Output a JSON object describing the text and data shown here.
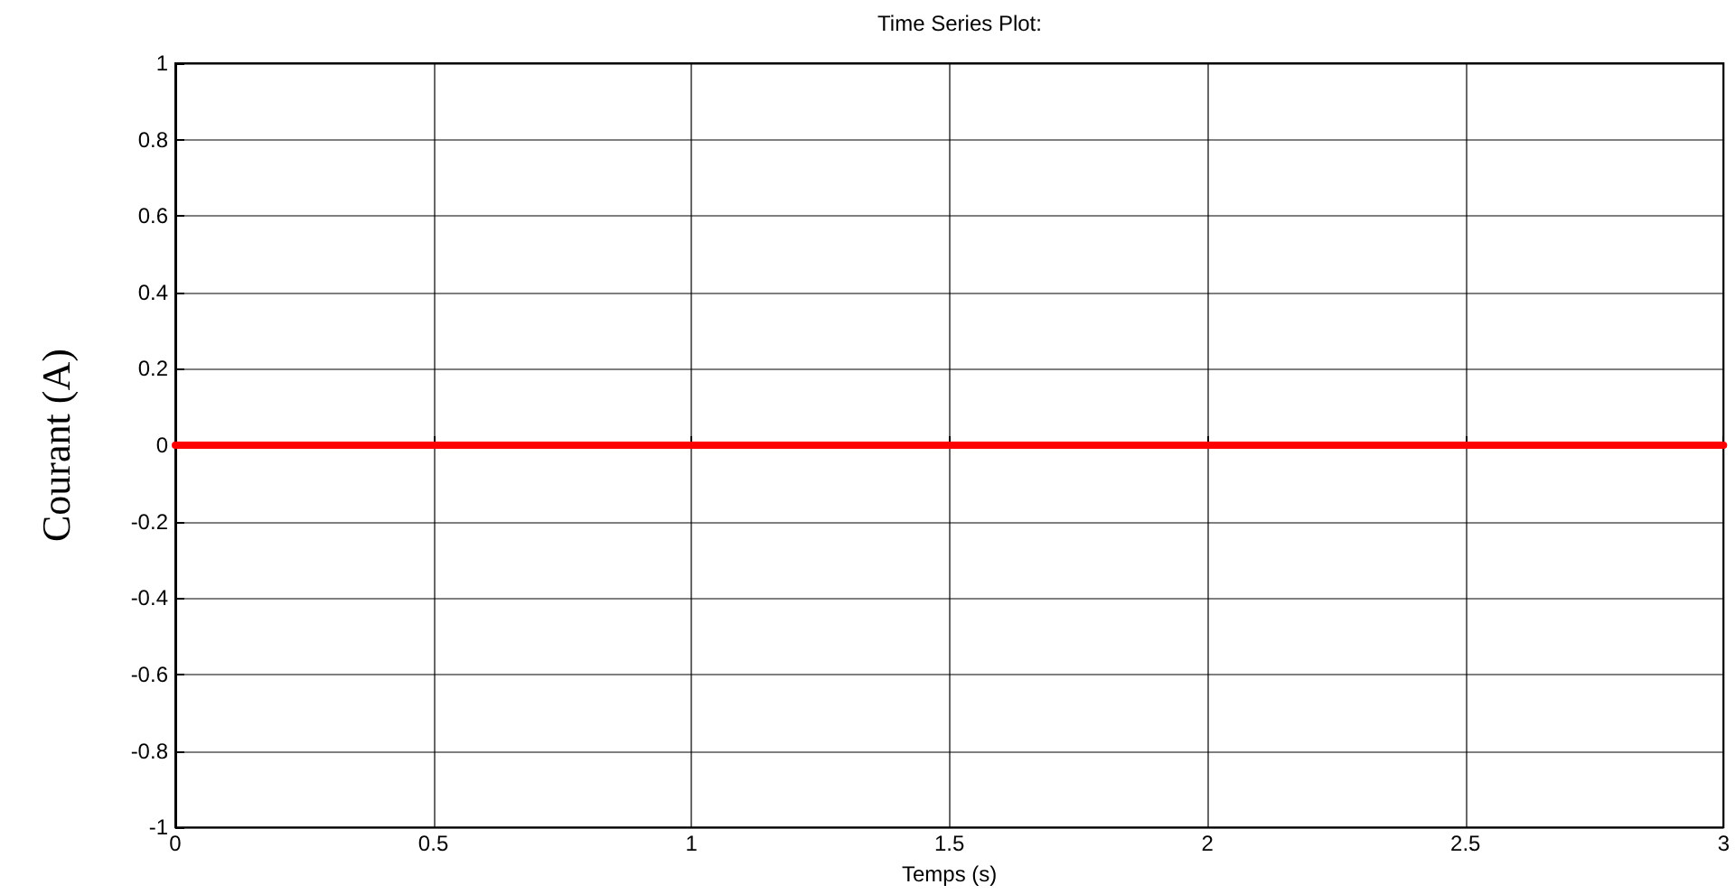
{
  "chart_data": {
    "type": "line",
    "title": "Time Series Plot:",
    "xlabel": "Temps (s)",
    "ylabel": "Courant (A)",
    "x": [
      0,
      3
    ],
    "series": [
      {
        "color": "#ff0000",
        "values": [
          0,
          0
        ]
      }
    ],
    "xlim": [
      0,
      3
    ],
    "xticks": [
      0,
      0.5,
      1,
      1.5,
      2,
      2.5,
      3
    ],
    "ylim": [
      -1,
      1
    ],
    "yticks": [
      -1,
      -0.8,
      -0.6,
      -0.4,
      -0.2,
      0,
      0.2,
      0.4,
      0.6,
      0.8,
      1
    ],
    "grid": true,
    "marker": "none",
    "line_style": "solid"
  }
}
